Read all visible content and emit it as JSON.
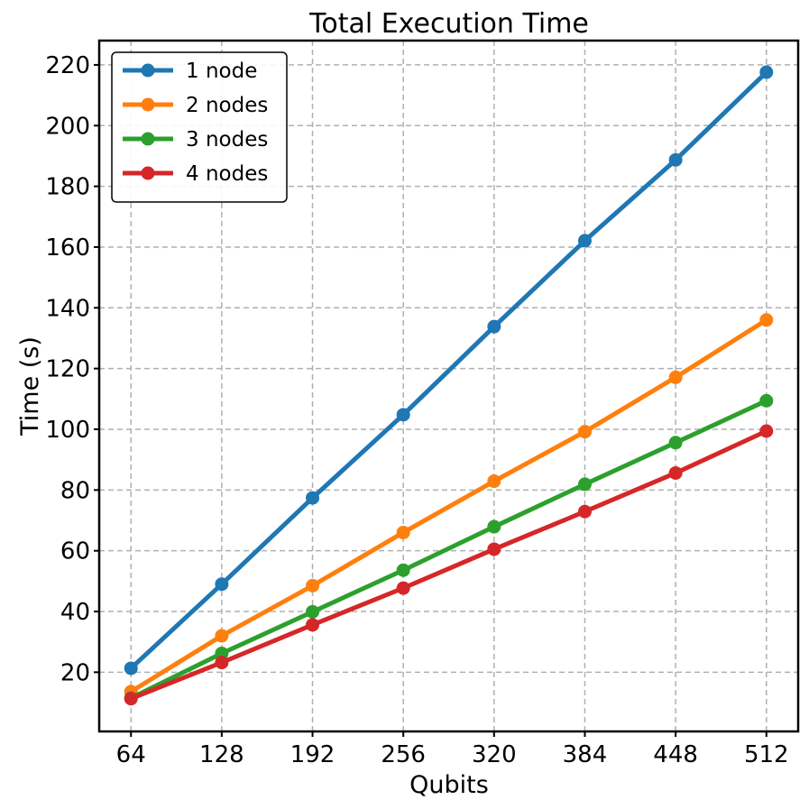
{
  "chart_data": {
    "type": "line",
    "title": "Total Execution Time",
    "xlabel": "Qubits",
    "ylabel": "Time (s)",
    "x": [
      64,
      128,
      192,
      256,
      320,
      384,
      448,
      512
    ],
    "x_tick_labels": [
      "64",
      "128",
      "192",
      "256",
      "320",
      "384",
      "448",
      "512"
    ],
    "y_ticks": [
      20,
      40,
      60,
      80,
      100,
      120,
      140,
      160,
      180,
      200,
      220
    ],
    "y_tick_labels": [
      "20",
      "40",
      "60",
      "80",
      "100",
      "120",
      "140",
      "160",
      "180",
      "200",
      "220"
    ],
    "ylim": [
      0.5,
      228
    ],
    "grid": true,
    "legend_position": "top-left",
    "series": [
      {
        "name": "1 node",
        "color": "#1f77b4",
        "values": [
          21.3,
          49.0,
          77.4,
          104.8,
          133.8,
          162.1,
          188.7,
          217.6
        ]
      },
      {
        "name": "2 nodes",
        "color": "#ff7f0e",
        "values": [
          13.6,
          32.0,
          48.5,
          66.0,
          82.9,
          99.2,
          117.1,
          136.0
        ]
      },
      {
        "name": "3 nodes",
        "color": "#2ca02c",
        "values": [
          11.5,
          26.2,
          39.9,
          53.6,
          67.9,
          81.9,
          95.6,
          109.4
        ]
      },
      {
        "name": "4 nodes",
        "color": "#d62728",
        "values": [
          11.3,
          23.2,
          35.6,
          47.7,
          60.5,
          72.9,
          85.6,
          99.4
        ]
      }
    ]
  }
}
